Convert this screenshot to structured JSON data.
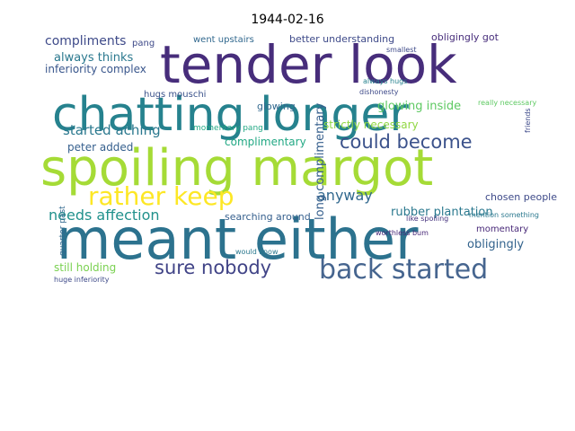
{
  "chart_data": {
    "type": "wordcloud",
    "title": "1944-02-16",
    "words": [
      "tender look",
      "chatting longer",
      "spoiling margot",
      "meant either",
      "back started",
      "rather keep",
      "could become",
      "sure nobody",
      "compliments",
      "always thinks",
      "inferiority complex",
      "started aching",
      "peter added",
      "needs affection",
      "still holding",
      "anyway",
      "rubber plantation",
      "obligingly",
      "glowing inside",
      "strictly necessary",
      "complimentary",
      "long complimentary",
      "better understanding",
      "obligingly got",
      "went upstairs",
      "searching around",
      "chosen people",
      "momentary",
      "glowing",
      "pang",
      "hugs mouschi",
      "momentary pang",
      "would know",
      "worthless bum",
      "like spoiling",
      "mention something",
      "always hugs",
      "dishonesty",
      "really necessary",
      "smallest",
      "quarter past",
      "huge inferiority",
      "friends"
    ]
  }
}
